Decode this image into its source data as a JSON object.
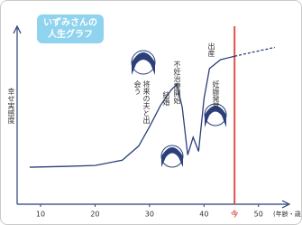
{
  "chart_data": {
    "type": "line",
    "title": "いずみさんの人生グラフ",
    "ylabel": "幸せ実感度",
    "xlabel": "(年齢・歳)",
    "x": [
      8,
      15,
      20,
      25,
      28,
      30,
      32,
      34,
      35,
      36,
      37,
      38,
      39,
      40,
      41,
      43,
      45.6,
      50,
      53
    ],
    "series": [
      {
        "color": "#2b3f7a",
        "dashed": false,
        "values": [
          21,
          21.5,
          22,
          25,
          33,
          44,
          56,
          65,
          68,
          55,
          28,
          38,
          30,
          60,
          77,
          82,
          84,
          null,
          null
        ]
      },
      {
        "color": "#2b3f7a",
        "dashed": true,
        "values": [
          null,
          null,
          null,
          null,
          null,
          null,
          null,
          null,
          null,
          null,
          null,
          null,
          null,
          null,
          null,
          null,
          84,
          87,
          89
        ]
      }
    ],
    "xlim": [
      5.7,
      55
    ],
    "ylim": [
      0,
      100
    ],
    "xticks": [
      10,
      20,
      30,
      40,
      50
    ],
    "now": {
      "value": 45.6,
      "label": "今",
      "color": "#e0504a"
    },
    "annotations": [
      "将来の夫と出会う",
      "結婚",
      "不妊治療開始",
      "出産",
      "妊娠発覚"
    ]
  }
}
